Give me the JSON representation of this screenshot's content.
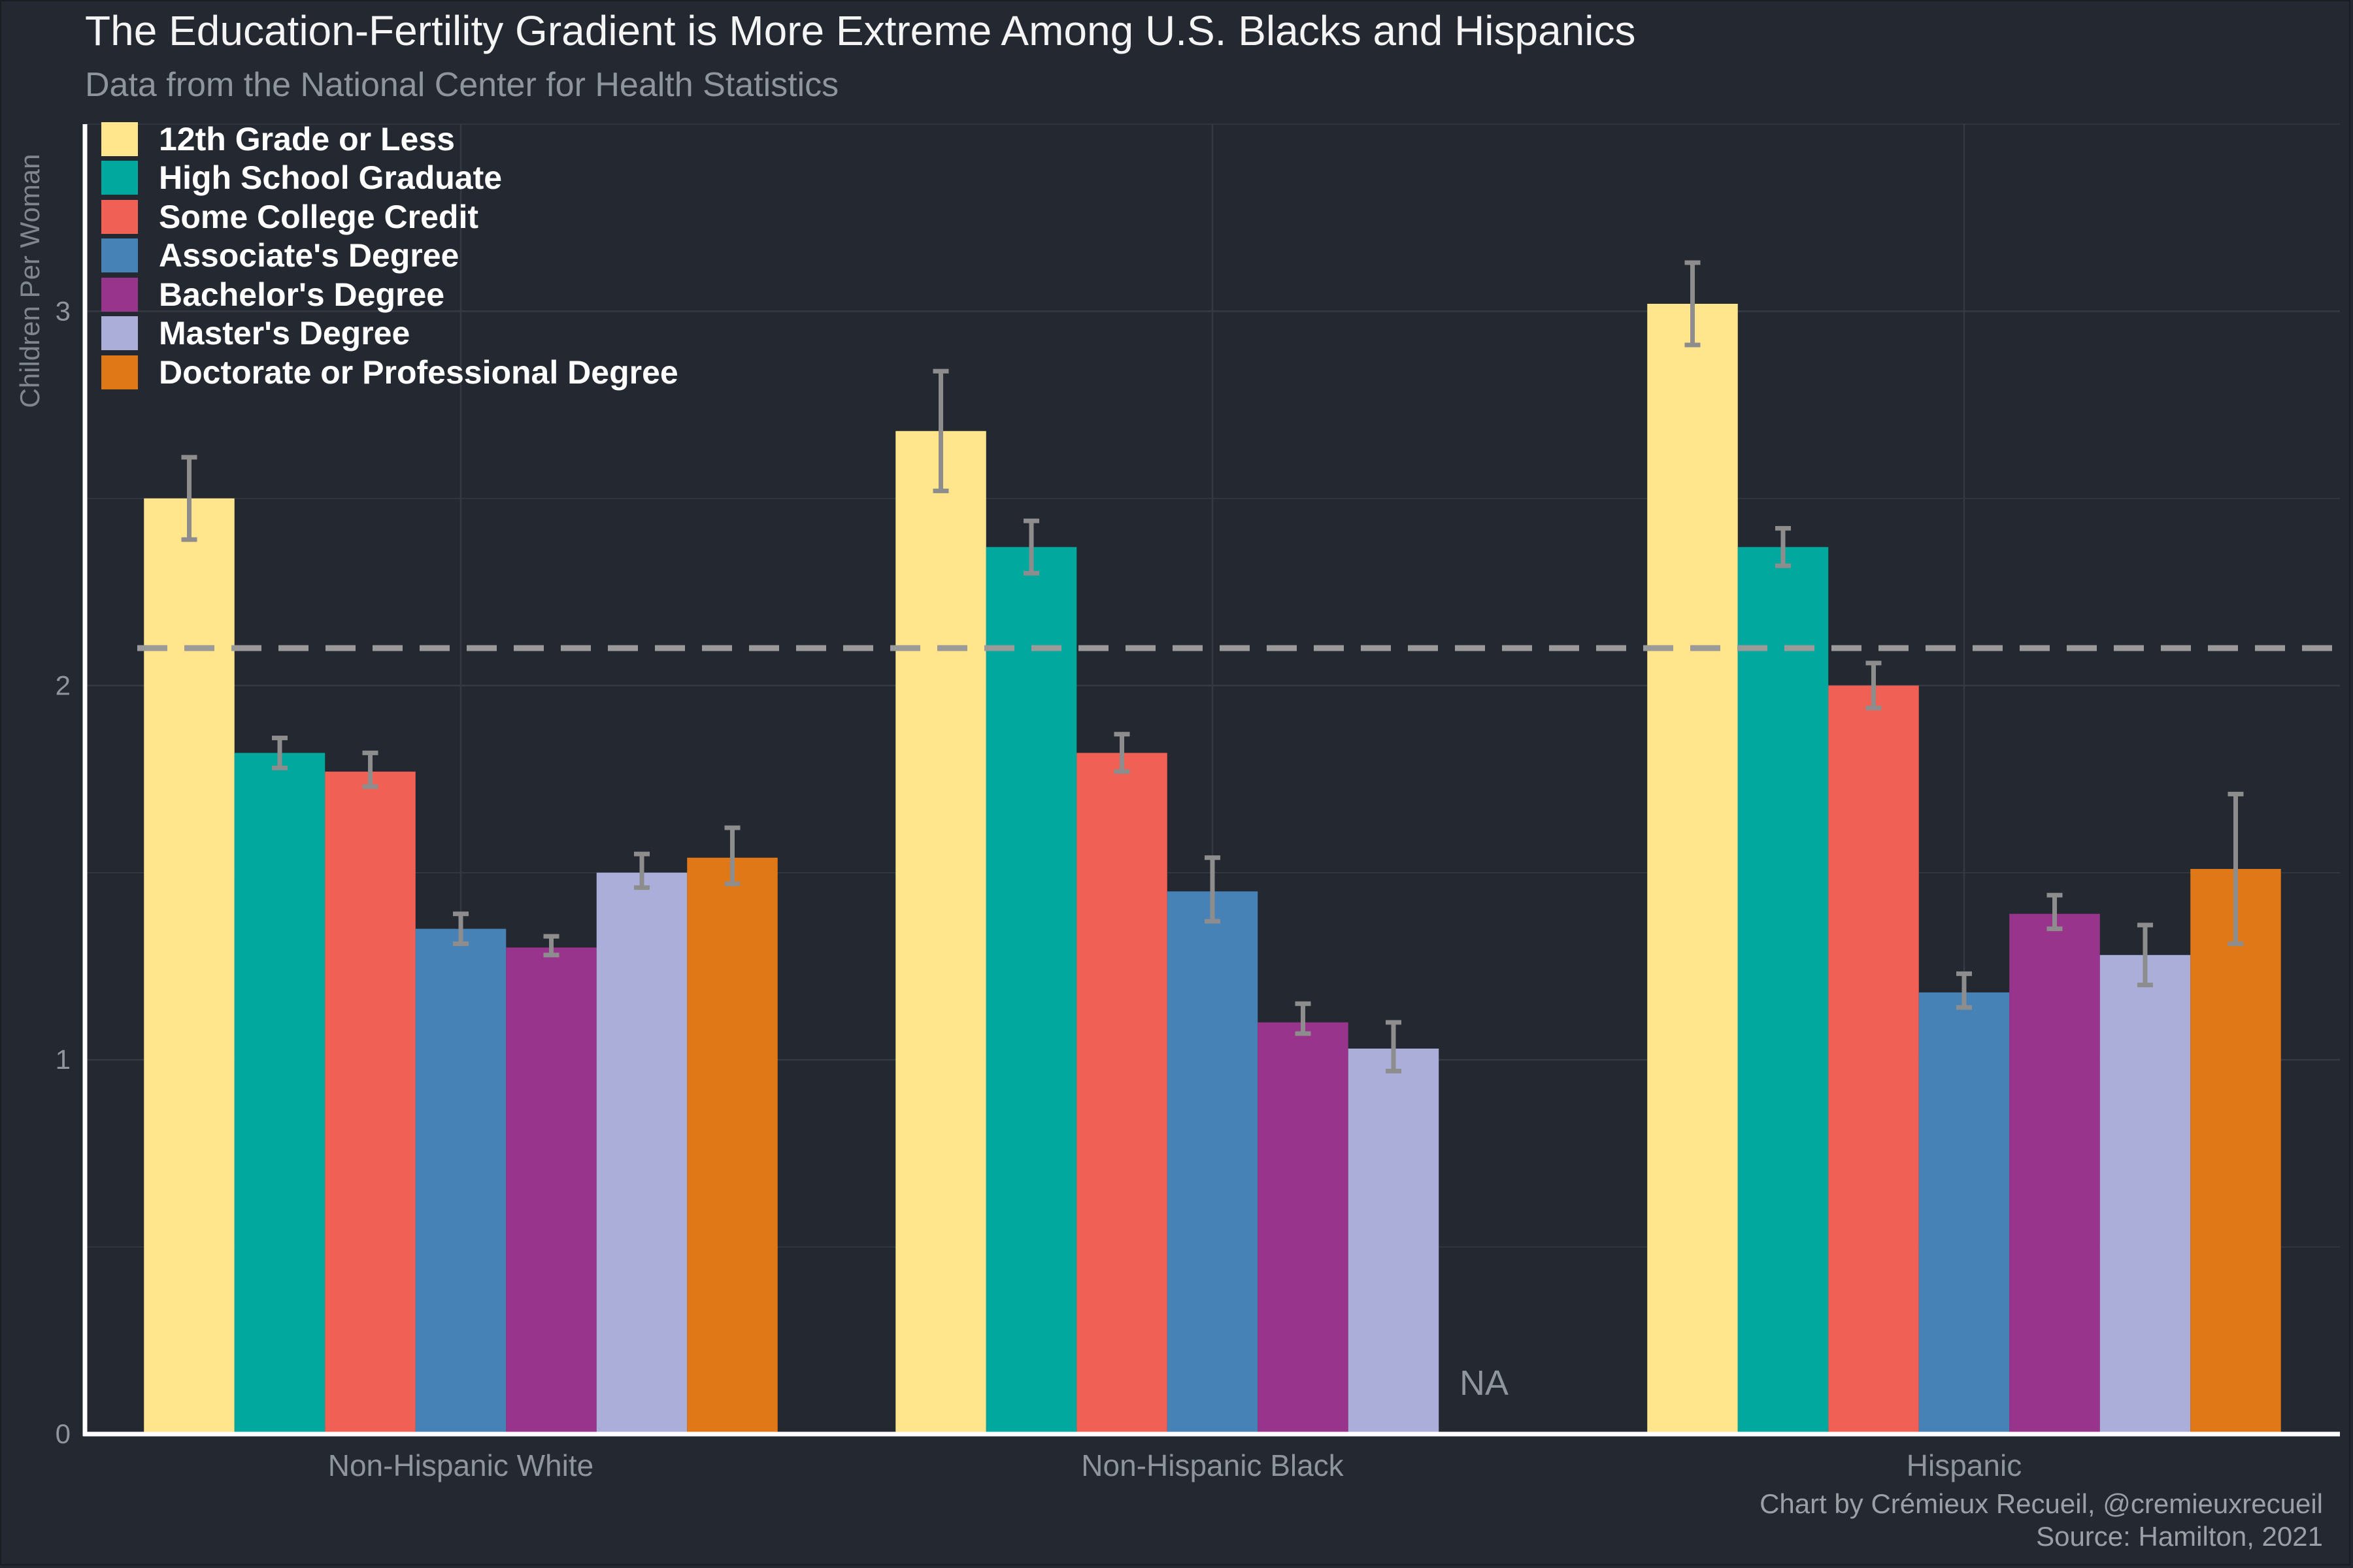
{
  "title": "The Education-Fertility Gradient is More Extreme Among U.S. Blacks and Hispanics",
  "subtitle": "Data from the National Center for Health Statistics",
  "caption_line1": "Chart by Crémieux Recueil, @cremieuxrecueil",
  "caption_line2": "Source: Hamilton, 2021",
  "colors": {
    "background": "#232831",
    "grid": "#343a43",
    "axis": "#ffffff",
    "errorbar": "#8d8d8d",
    "reference_line": "#9a9a9a",
    "muted_text": "#8f959c"
  },
  "chart_data": {
    "type": "bar",
    "title": "The Education-Fertility Gradient is More Extreme Among U.S. Blacks and Hispanics",
    "xlabel": "",
    "ylabel": "Children Per Woman",
    "ylim": [
      0,
      3.5
    ],
    "yticks": [
      0,
      1,
      2,
      3
    ],
    "categories": [
      "Non-Hispanic White",
      "Non-Hispanic Black",
      "Hispanic"
    ],
    "reference_line": 2.1,
    "legend_position": "top-left",
    "na_label": "NA",
    "series": [
      {
        "name": "12th Grade or Less",
        "color": "#ffe68c",
        "values": [
          2.5,
          2.68,
          3.02
        ],
        "lower": [
          2.39,
          2.52,
          2.91
        ],
        "upper": [
          2.61,
          2.84,
          3.13
        ]
      },
      {
        "name": "High School Graduate",
        "color": "#00a89d",
        "values": [
          1.82,
          2.37,
          2.37
        ],
        "lower": [
          1.78,
          2.3,
          2.32
        ],
        "upper": [
          1.86,
          2.44,
          2.42
        ]
      },
      {
        "name": "Some College Credit",
        "color": "#f06055",
        "values": [
          1.77,
          1.82,
          2.0
        ],
        "lower": [
          1.73,
          1.77,
          1.94
        ],
        "upper": [
          1.82,
          1.87,
          2.06
        ]
      },
      {
        "name": "Associate's Degree",
        "color": "#4782b6",
        "values": [
          1.35,
          1.45,
          1.18
        ],
        "lower": [
          1.31,
          1.37,
          1.14
        ],
        "upper": [
          1.39,
          1.54,
          1.23
        ]
      },
      {
        "name": "Bachelor's Degree",
        "color": "#99348c",
        "values": [
          1.3,
          1.1,
          1.39
        ],
        "lower": [
          1.28,
          1.07,
          1.35
        ],
        "upper": [
          1.33,
          1.15,
          1.44
        ]
      },
      {
        "name": "Master's Degree",
        "color": "#aaaed9",
        "values": [
          1.5,
          1.03,
          1.28
        ],
        "lower": [
          1.46,
          0.97,
          1.2
        ],
        "upper": [
          1.55,
          1.1,
          1.36
        ]
      },
      {
        "name": "Doctorate or Professional Degree",
        "color": "#e07818",
        "values": [
          1.54,
          null,
          1.51
        ],
        "lower": [
          1.47,
          null,
          1.31
        ],
        "upper": [
          1.62,
          null,
          1.71
        ]
      }
    ]
  }
}
